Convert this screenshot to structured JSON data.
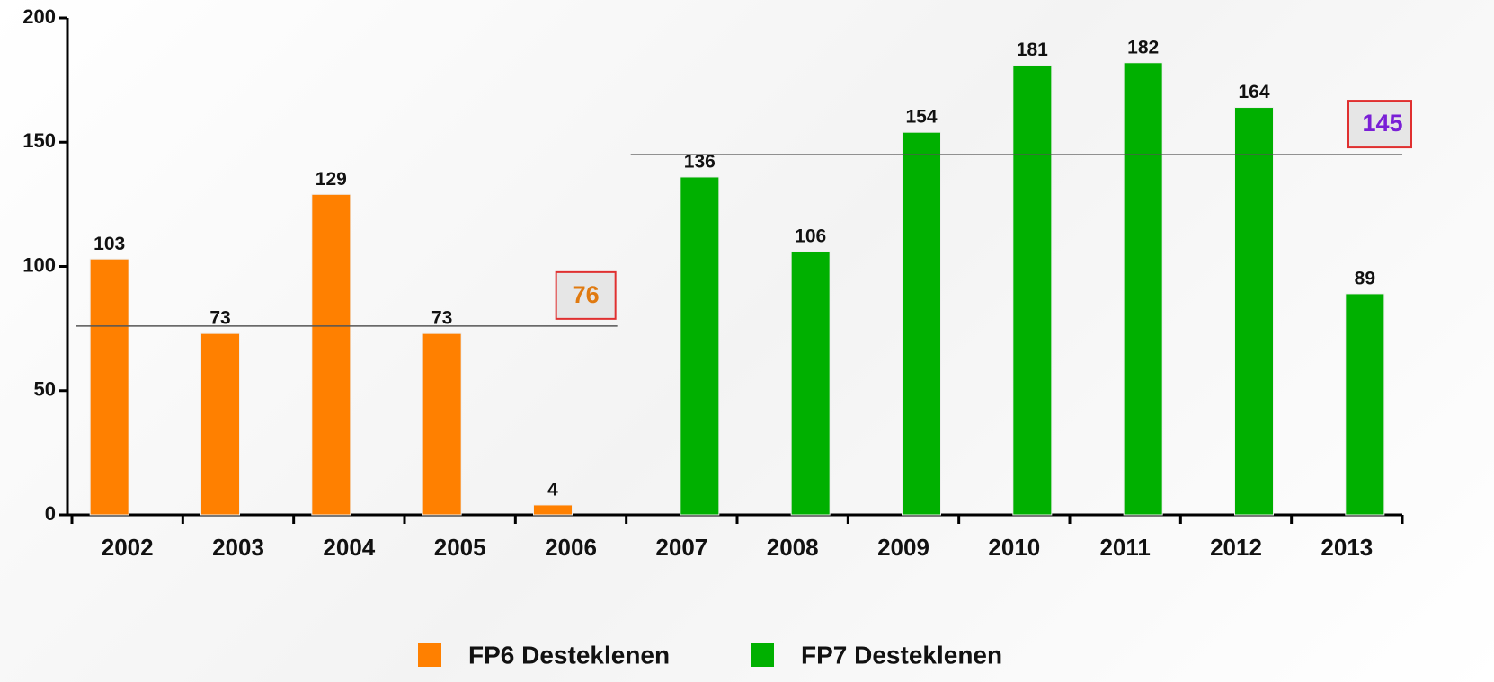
{
  "chart_data": {
    "type": "bar",
    "categories": [
      "2002",
      "2003",
      "2004",
      "2005",
      "2006",
      "2007",
      "2008",
      "2009",
      "2010",
      "2011",
      "2012",
      "2013"
    ],
    "series": [
      {
        "name": "FP6 Desteklenen",
        "color": "#ff8000",
        "values": [
          103,
          73,
          129,
          73,
          4,
          null,
          null,
          null,
          null,
          null,
          null,
          null
        ],
        "average": 76,
        "average_color": "#e07a10"
      },
      {
        "name": "FP7 Desteklenen",
        "color": "#00b000",
        "values": [
          null,
          null,
          null,
          null,
          null,
          136,
          106,
          154,
          181,
          182,
          164,
          89
        ],
        "average": 145,
        "average_color": "#7a1fd6"
      }
    ],
    "ylim": [
      0,
      200
    ],
    "yticks": [
      0,
      50,
      100,
      150,
      200
    ],
    "legend": "bottom"
  }
}
